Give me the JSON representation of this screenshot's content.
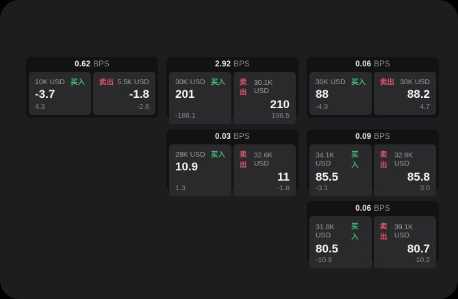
{
  "labels": {
    "bps_unit": "BPS",
    "buy": "买入",
    "sell": "卖出"
  },
  "colors": {
    "background": "#000000",
    "panel": "#1d1d1f",
    "card": "#121213",
    "side_panel": "#2a2a2c",
    "buy_green": "#3dbd72",
    "sell_red": "#df5468",
    "text_primary": "#f5f5f5",
    "text_muted": "#9d9da2"
  },
  "cards": [
    {
      "col": 1,
      "row": 1,
      "bps": "0.62",
      "buy": {
        "amount": "10K USD",
        "value": "-3.7",
        "sub": "4.3"
      },
      "sell": {
        "amount": "5.5K USD",
        "value": "-1.8",
        "sub": "-2.6"
      }
    },
    {
      "col": 2,
      "row": 1,
      "bps": "2.92",
      "buy": {
        "amount": "30K USD",
        "value": "201",
        "sub": "-188.1"
      },
      "sell": {
        "amount": "30.1K USD",
        "value": "210",
        "sub": "196.5"
      }
    },
    {
      "col": 3,
      "row": 1,
      "bps": "0.06",
      "buy": {
        "amount": "30K USD",
        "value": "88",
        "sub": "-4.9"
      },
      "sell": {
        "amount": "30K USD",
        "value": "88.2",
        "sub": "4.7"
      }
    },
    {
      "col": 2,
      "row": 2,
      "bps": "0.03",
      "buy": {
        "amount": "28K USD",
        "value": "10.9",
        "sub": "1.3"
      },
      "sell": {
        "amount": "32.6K USD",
        "value": "11",
        "sub": "-1.8"
      }
    },
    {
      "col": 3,
      "row": 2,
      "bps": "0.09",
      "buy": {
        "amount": "34.1K USD",
        "value": "85.5",
        "sub": "-3.1"
      },
      "sell": {
        "amount": "32.8K USD",
        "value": "85.8",
        "sub": "3.0"
      }
    },
    {
      "col": 3,
      "row": 3,
      "bps": "0.06",
      "buy": {
        "amount": "31.8K USD",
        "value": "80.5",
        "sub": "-10.8"
      },
      "sell": {
        "amount": "39.1K USD",
        "value": "80.7",
        "sub": "10.2"
      }
    }
  ]
}
